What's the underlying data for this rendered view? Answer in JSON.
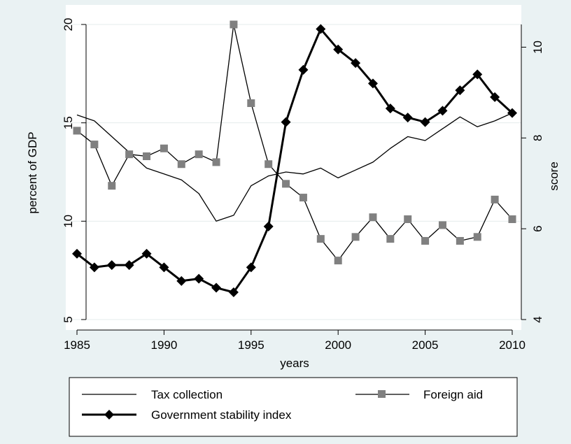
{
  "chart_data": {
    "type": "line",
    "x": [
      1985,
      1986,
      1987,
      1988,
      1989,
      1990,
      1991,
      1992,
      1993,
      1994,
      1995,
      1996,
      1997,
      1998,
      1999,
      2000,
      2001,
      2002,
      2003,
      2004,
      2005,
      2006,
      2007,
      2008,
      2009,
      2010
    ],
    "xlabel": "years",
    "ylabel_left": "percent of GDP",
    "ylabel_right": "score",
    "xlim": [
      1985,
      2010
    ],
    "ylim_left": [
      5,
      20
    ],
    "ylim_right": [
      4,
      10.5
    ],
    "x_ticks": [
      "1985",
      "1990",
      "1995",
      "2000",
      "2005",
      "2010"
    ],
    "y_ticks_left": [
      "5",
      "10",
      "15",
      "20"
    ],
    "y_ticks_right": [
      "4",
      "6",
      "8",
      "10"
    ],
    "grid": "horizontal",
    "legend_position": "bottom",
    "series": [
      {
        "name": "Tax collection",
        "axis": "left",
        "color": "#000000",
        "marker": "none",
        "values": [
          15.4,
          15.1,
          14.3,
          13.5,
          12.7,
          12.4,
          12.1,
          11.4,
          10.0,
          10.3,
          11.8,
          12.3,
          12.5,
          12.4,
          12.7,
          12.2,
          12.6,
          13.0,
          13.7,
          14.3,
          14.1,
          14.7,
          15.3,
          14.8,
          15.1,
          15.5
        ]
      },
      {
        "name": "Foreign aid",
        "axis": "left",
        "color": "#808080",
        "marker": "square",
        "values": [
          14.6,
          13.9,
          11.8,
          13.4,
          13.3,
          13.7,
          12.9,
          13.4,
          13.0,
          20.0,
          16.0,
          12.9,
          11.9,
          11.2,
          9.1,
          8.0,
          9.2,
          10.2,
          9.1,
          10.1,
          9.0,
          9.8,
          9.0,
          9.2,
          11.1,
          10.1
        ]
      },
      {
        "name": "Government stability index",
        "axis": "right",
        "color": "#000000",
        "marker": "diamond",
        "values": [
          5.45,
          5.15,
          5.2,
          5.2,
          5.45,
          5.15,
          4.85,
          4.9,
          4.7,
          4.6,
          5.15,
          6.05,
          8.35,
          9.5,
          10.4,
          9.95,
          9.65,
          9.2,
          8.65,
          8.45,
          8.35,
          8.6,
          9.05,
          9.4,
          8.9,
          8.55
        ]
      }
    ]
  }
}
